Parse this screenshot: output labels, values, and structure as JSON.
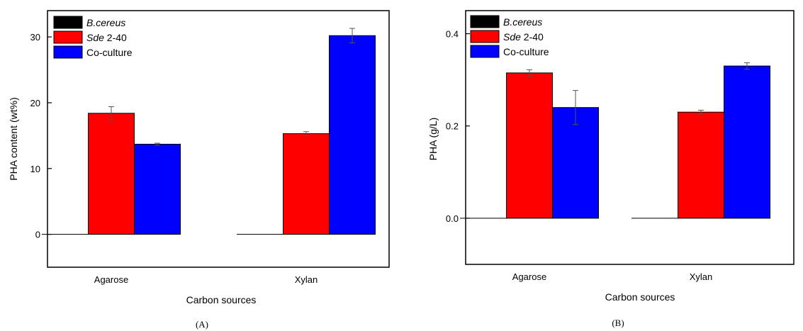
{
  "chart_data": [
    {
      "type": "bar",
      "panel_label": "(A)",
      "categories": [
        "Agarose",
        "Xylan"
      ],
      "xlabel": "Carbon sources",
      "ylabel": "PHA content (wt%)",
      "ylim": [
        -5,
        34
      ],
      "yticks": [
        "0",
        "10",
        "20",
        "30"
      ],
      "ytick_values": [
        0,
        10,
        20,
        30
      ],
      "legend": "top-left",
      "series": [
        {
          "name": "B.cereus",
          "legend_label": "B.cereus",
          "color": "#000000",
          "values": [
            0,
            0
          ],
          "errors": [
            0,
            0
          ]
        },
        {
          "name": "Sde 2-40",
          "legend_italic": "Sde",
          "legend_rest": " 2-40",
          "color": "#ff0000",
          "values": [
            18.4,
            15.3
          ],
          "errors": [
            1.0,
            0.3
          ]
        },
        {
          "name": "Co-culture",
          "legend_label": "Co-culture",
          "color": "#0000ff",
          "values": [
            13.7,
            30.2
          ],
          "errors": [
            0.15,
            1.1
          ]
        }
      ]
    },
    {
      "type": "bar",
      "panel_label": "(B)",
      "categories": [
        "Agarose",
        "Xylan"
      ],
      "xlabel": "Carbon sources",
      "ylabel": "PHA (g/L)",
      "ylim": [
        -0.1,
        0.45
      ],
      "yticks": [
        "0.0",
        "0.2",
        "0.4"
      ],
      "ytick_values": [
        0.0,
        0.2,
        0.4
      ],
      "legend": "top-left",
      "series": [
        {
          "name": "B.cereus",
          "legend_label": "B.cereus",
          "color": "#000000",
          "values": [
            0,
            0
          ],
          "errors": [
            0,
            0
          ]
        },
        {
          "name": "Sde 2-40",
          "legend_italic": "Sde",
          "legend_rest": " 2-40",
          "color": "#ff0000",
          "values": [
            0.315,
            0.23
          ],
          "errors": [
            0.007,
            0.004
          ]
        },
        {
          "name": "Co-culture",
          "legend_label": "Co-culture",
          "color": "#0000ff",
          "values": [
            0.24,
            0.33
          ],
          "errors": [
            0.037,
            0.007
          ]
        }
      ]
    }
  ]
}
